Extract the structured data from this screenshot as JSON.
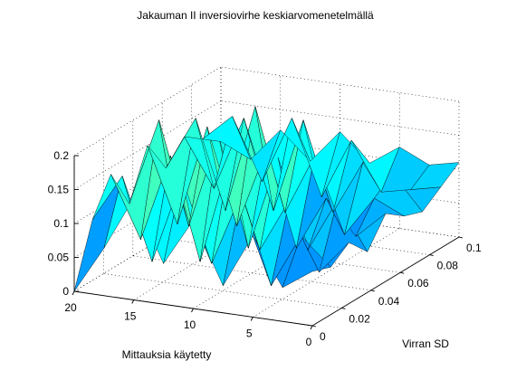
{
  "chart_data": {
    "type": "surface",
    "title": "Jakauman II inversiovirhe keskiarvomenetelmällä",
    "xlabel": "Virran SD",
    "ylabel": "Mittauksia käytetty",
    "zlabel": "",
    "x_range": [
      0,
      0.1
    ],
    "y_range": [
      0,
      20
    ],
    "z_range": [
      0,
      0.2
    ],
    "x_ticks": [
      "0",
      "0.02",
      "0.04",
      "0.06",
      "0.08",
      "0.1"
    ],
    "y_ticks": [
      "0",
      "5",
      "10",
      "15",
      "20"
    ],
    "z_ticks": [
      "0",
      "0.05",
      "0.1",
      "0.15",
      "0.2"
    ],
    "grid": true,
    "colormap": "jet",
    "grid_points": {
      "x": [
        0,
        0.0125,
        0.025,
        0.0375,
        0.05,
        0.0625,
        0.075,
        0.0875,
        0.1
      ],
      "y": [
        0,
        2.5,
        5,
        7.5,
        10,
        12.5,
        15,
        17.5,
        20
      ]
    },
    "z_values": [
      [
        0.08,
        0.07,
        0.09,
        0.06,
        0.1,
        0.08,
        0.07,
        0.09,
        0.11
      ],
      [
        0.05,
        0.11,
        0.04,
        0.13,
        0.06,
        0.1,
        0.12,
        0.08,
        0.1
      ],
      [
        0.12,
        0.03,
        0.14,
        0.05,
        0.11,
        0.04,
        0.13,
        0.07,
        0.12
      ],
      [
        0.04,
        0.16,
        0.06,
        0.18,
        0.03,
        0.15,
        0.05,
        0.14,
        0.09
      ],
      [
        0.13,
        0.05,
        0.19,
        0.04,
        0.17,
        0.06,
        0.18,
        0.05,
        0.13
      ],
      [
        0.06,
        0.17,
        0.03,
        0.2,
        0.05,
        0.21,
        0.04,
        0.16,
        0.08
      ],
      [
        0.15,
        0.04,
        0.18,
        0.06,
        0.19,
        0.05,
        0.17,
        0.06,
        0.12
      ],
      [
        0.07,
        0.16,
        0.05,
        0.21,
        0.04,
        0.18,
        0.06,
        0.15,
        0.07
      ],
      [
        0.0,
        0.09,
        0.14,
        0.08,
        0.15,
        0.1,
        0.13,
        0.11,
        0.09
      ]
    ]
  }
}
